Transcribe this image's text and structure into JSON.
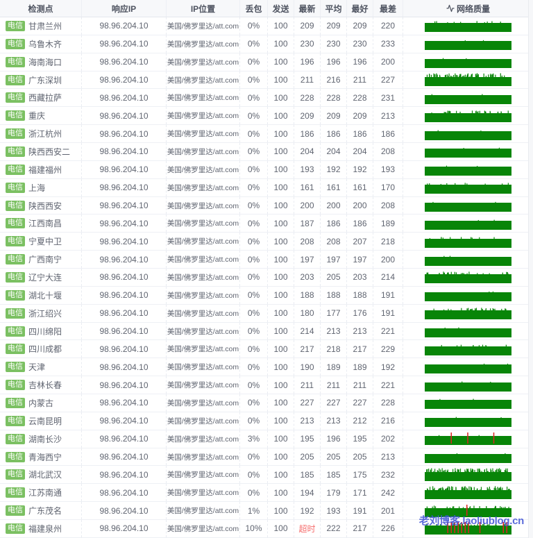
{
  "table": {
    "columns": [
      "检测点",
      "响应IP",
      "IP位置",
      "丢包",
      "发送",
      "最新",
      "平均",
      "最好",
      "最差",
      "网络质量"
    ],
    "rows": [
      {
        "isp": "电信",
        "node": "甘肃兰州",
        "ip": "98.96.204.10",
        "location": "美国/佛罗里达/att.com",
        "loss": "0%",
        "sent": "100",
        "latest": "209",
        "avg": "209",
        "best": "209",
        "worst": "220",
        "jitter": "low",
        "red_spikes": []
      },
      {
        "isp": "电信",
        "node": "乌鲁木齐",
        "ip": "98.96.204.10",
        "location": "美国/佛罗里达/att.com",
        "loss": "0%",
        "sent": "100",
        "latest": "230",
        "avg": "230",
        "best": "230",
        "worst": "233",
        "jitter": "none",
        "red_spikes": []
      },
      {
        "isp": "电信",
        "node": "海南海口",
        "ip": "98.96.204.10",
        "location": "美国/佛罗里达/att.com",
        "loss": "0%",
        "sent": "100",
        "latest": "196",
        "avg": "196",
        "best": "196",
        "worst": "200",
        "jitter": "none",
        "red_spikes": []
      },
      {
        "isp": "电信",
        "node": "广东深圳",
        "ip": "98.96.204.10",
        "location": "美国/佛罗里达/att.com",
        "loss": "0%",
        "sent": "100",
        "latest": "211",
        "avg": "216",
        "best": "211",
        "worst": "227",
        "jitter": "high",
        "red_spikes": []
      },
      {
        "isp": "电信",
        "node": "西藏拉萨",
        "ip": "98.96.204.10",
        "location": "美国/佛罗里达/att.com",
        "loss": "0%",
        "sent": "100",
        "latest": "228",
        "avg": "228",
        "best": "228",
        "worst": "231",
        "jitter": "none",
        "red_spikes": []
      },
      {
        "isp": "电信",
        "node": "重庆",
        "ip": "98.96.204.10",
        "location": "美国/佛罗里达/att.com",
        "loss": "0%",
        "sent": "100",
        "latest": "209",
        "avg": "209",
        "best": "209",
        "worst": "213",
        "jitter": "mid",
        "red_spikes": []
      },
      {
        "isp": "电信",
        "node": "浙江杭州",
        "ip": "98.96.204.10",
        "location": "美国/佛罗里达/att.com",
        "loss": "0%",
        "sent": "100",
        "latest": "186",
        "avg": "186",
        "best": "186",
        "worst": "186",
        "jitter": "none",
        "red_spikes": []
      },
      {
        "isp": "电信",
        "node": "陕西西安二",
        "ip": "98.96.204.10",
        "location": "美国/佛罗里达/att.com",
        "loss": "0%",
        "sent": "100",
        "latest": "204",
        "avg": "204",
        "best": "204",
        "worst": "208",
        "jitter": "none",
        "red_spikes": []
      },
      {
        "isp": "电信",
        "node": "福建福州",
        "ip": "98.96.204.10",
        "location": "美国/佛罗里达/att.com",
        "loss": "0%",
        "sent": "100",
        "latest": "193",
        "avg": "192",
        "best": "192",
        "worst": "193",
        "jitter": "none",
        "red_spikes": []
      },
      {
        "isp": "电信",
        "node": "上海",
        "ip": "98.96.204.10",
        "location": "美国/佛罗里达/att.com",
        "loss": "0%",
        "sent": "100",
        "latest": "161",
        "avg": "161",
        "best": "161",
        "worst": "170",
        "jitter": "low",
        "red_spikes": []
      },
      {
        "isp": "电信",
        "node": "陕西西安",
        "ip": "98.96.204.10",
        "location": "美国/佛罗里达/att.com",
        "loss": "0%",
        "sent": "100",
        "latest": "200",
        "avg": "200",
        "best": "200",
        "worst": "208",
        "jitter": "none",
        "red_spikes": []
      },
      {
        "isp": "电信",
        "node": "江西南昌",
        "ip": "98.96.204.10",
        "location": "美国/佛罗里达/att.com",
        "loss": "0%",
        "sent": "100",
        "latest": "187",
        "avg": "186",
        "best": "186",
        "worst": "189",
        "jitter": "none",
        "red_spikes": []
      },
      {
        "isp": "电信",
        "node": "宁夏中卫",
        "ip": "98.96.204.10",
        "location": "美国/佛罗里达/att.com",
        "loss": "0%",
        "sent": "100",
        "latest": "208",
        "avg": "208",
        "best": "207",
        "worst": "218",
        "jitter": "low",
        "red_spikes": []
      },
      {
        "isp": "电信",
        "node": "广西南宁",
        "ip": "98.96.204.10",
        "location": "美国/佛罗里达/att.com",
        "loss": "0%",
        "sent": "100",
        "latest": "197",
        "avg": "197",
        "best": "197",
        "worst": "200",
        "jitter": "none",
        "red_spikes": []
      },
      {
        "isp": "电信",
        "node": "辽宁大连",
        "ip": "98.96.204.10",
        "location": "美国/佛罗里达/att.com",
        "loss": "0%",
        "sent": "100",
        "latest": "203",
        "avg": "205",
        "best": "203",
        "worst": "214",
        "jitter": "mid",
        "red_spikes": []
      },
      {
        "isp": "电信",
        "node": "湖北十堰",
        "ip": "98.96.204.10",
        "location": "美国/佛罗里达/att.com",
        "loss": "0%",
        "sent": "100",
        "latest": "188",
        "avg": "188",
        "best": "188",
        "worst": "191",
        "jitter": "none",
        "red_spikes": []
      },
      {
        "isp": "电信",
        "node": "浙江绍兴",
        "ip": "98.96.204.10",
        "location": "美国/佛罗里达/att.com",
        "loss": "0%",
        "sent": "100",
        "latest": "180",
        "avg": "177",
        "best": "176",
        "worst": "191",
        "jitter": "mid",
        "red_spikes": []
      },
      {
        "isp": "电信",
        "node": "四川绵阳",
        "ip": "98.96.204.10",
        "location": "美国/佛罗里达/att.com",
        "loss": "0%",
        "sent": "100",
        "latest": "214",
        "avg": "213",
        "best": "213",
        "worst": "221",
        "jitter": "none",
        "red_spikes": []
      },
      {
        "isp": "电信",
        "node": "四川成都",
        "ip": "98.96.204.10",
        "location": "美国/佛罗里达/att.com",
        "loss": "0%",
        "sent": "100",
        "latest": "217",
        "avg": "218",
        "best": "217",
        "worst": "229",
        "jitter": "low",
        "red_spikes": []
      },
      {
        "isp": "电信",
        "node": "天津",
        "ip": "98.96.204.10",
        "location": "美国/佛罗里达/att.com",
        "loss": "0%",
        "sent": "100",
        "latest": "190",
        "avg": "189",
        "best": "189",
        "worst": "192",
        "jitter": "none",
        "red_spikes": []
      },
      {
        "isp": "电信",
        "node": "吉林长春",
        "ip": "98.96.204.10",
        "location": "美国/佛罗里达/att.com",
        "loss": "0%",
        "sent": "100",
        "latest": "211",
        "avg": "211",
        "best": "211",
        "worst": "221",
        "jitter": "none",
        "red_spikes": []
      },
      {
        "isp": "电信",
        "node": "内蒙古",
        "ip": "98.96.204.10",
        "location": "美国/佛罗里达/att.com",
        "loss": "0%",
        "sent": "100",
        "latest": "227",
        "avg": "227",
        "best": "227",
        "worst": "228",
        "jitter": "none",
        "red_spikes": []
      },
      {
        "isp": "电信",
        "node": "云南昆明",
        "ip": "98.96.204.10",
        "location": "美国/佛罗里达/att.com",
        "loss": "0%",
        "sent": "100",
        "latest": "213",
        "avg": "213",
        "best": "212",
        "worst": "216",
        "jitter": "none",
        "red_spikes": []
      },
      {
        "isp": "电信",
        "node": "湖南长沙",
        "ip": "98.96.204.10",
        "location": "美国/佛罗里达/att.com",
        "loss": "3%",
        "sent": "100",
        "latest": "195",
        "avg": "196",
        "best": "195",
        "worst": "202",
        "jitter": "none",
        "red_spikes": [
          0.3,
          0.49,
          0.79
        ]
      },
      {
        "isp": "电信",
        "node": "青海西宁",
        "ip": "98.96.204.10",
        "location": "美国/佛罗里达/att.com",
        "loss": "0%",
        "sent": "100",
        "latest": "205",
        "avg": "205",
        "best": "205",
        "worst": "213",
        "jitter": "none",
        "red_spikes": []
      },
      {
        "isp": "电信",
        "node": "湖北武汉",
        "ip": "98.96.204.10",
        "location": "美国/佛罗里达/att.com",
        "loss": "0%",
        "sent": "100",
        "latest": "185",
        "avg": "185",
        "best": "175",
        "worst": "232",
        "jitter": "high",
        "red_spikes": []
      },
      {
        "isp": "电信",
        "node": "江苏南通",
        "ip": "98.96.204.10",
        "location": "美国/佛罗里达/att.com",
        "loss": "0%",
        "sent": "100",
        "latest": "194",
        "avg": "179",
        "best": "171",
        "worst": "242",
        "jitter": "high",
        "red_spikes": []
      },
      {
        "isp": "电信",
        "node": "广东茂名",
        "ip": "98.96.204.10",
        "location": "美国/佛罗里达/att.com",
        "loss": "1%",
        "sent": "100",
        "latest": "192",
        "avg": "193",
        "best": "191",
        "worst": "201",
        "jitter": "mid",
        "red_spikes": [
          0.48
        ]
      },
      {
        "isp": "电信",
        "node": "福建泉州",
        "ip": "98.96.204.10",
        "location": "美国/佛罗里达/att.com",
        "loss": "10%",
        "sent": "100",
        "latest": "超时",
        "timeout": true,
        "avg": "222",
        "best": "217",
        "worst": "226",
        "jitter": "mid",
        "red_spikes": [
          0.26,
          0.3,
          0.34,
          0.38,
          0.42,
          0.46,
          0.5,
          0.63,
          0.9,
          0.94
        ]
      }
    ]
  },
  "colors": {
    "bar_green": "#088508",
    "loss_red": "#dd2222",
    "timeout_red": "#f56c6c",
    "badge_green": "#7bc062",
    "watermark_blue": "#4356d6"
  },
  "watermark": {
    "text": "老刘博客.laoliublog.cn"
  }
}
